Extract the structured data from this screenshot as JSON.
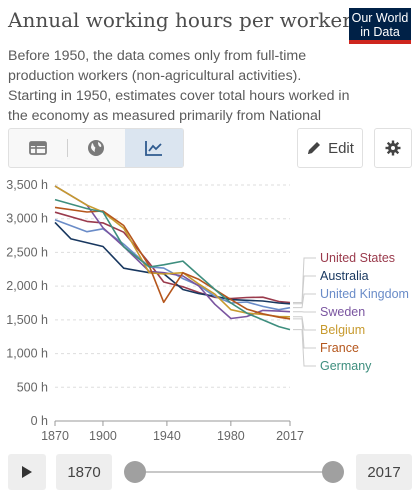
{
  "header": {
    "title": "Annual working hours per worker",
    "logo_line1": "Our World",
    "logo_line2": "in Data",
    "subtitle": "Before 1950, the data comes only from full-time production workers (non-agricultural activities). Starting in 1950, estimates cover total hours worked in the economy as measured primarily from National Accounts data."
  },
  "toolbar": {
    "tabs": [
      {
        "name": "table",
        "icon": "table-icon"
      },
      {
        "name": "map",
        "icon": "globe-icon"
      },
      {
        "name": "chart",
        "icon": "line-chart-icon",
        "active": true
      }
    ],
    "edit_label": "Edit",
    "settings_icon": "gear-icon"
  },
  "timeline": {
    "start_year": "1870",
    "end_year": "2017",
    "play_icon": "play-icon"
  },
  "chart_data": {
    "type": "line",
    "title": "",
    "xlabel": "",
    "ylabel": "",
    "xlim": [
      1870,
      2017
    ],
    "ylim": [
      0,
      3500
    ],
    "x_ticks": [
      "1870",
      "1900",
      "1940",
      "1980",
      "2017"
    ],
    "x_tick_values": [
      1870,
      1900,
      1940,
      1980,
      2017
    ],
    "y_ticks": [
      "0 h",
      "500 h",
      "1,000 h",
      "1,500 h",
      "2,000 h",
      "2,500 h",
      "3,000 h",
      "3,500 h"
    ],
    "y_tick_values": [
      0,
      500,
      1000,
      1500,
      2000,
      2500,
      3000,
      3500
    ],
    "grid": "horizontal-dashed",
    "legend": "right",
    "series": [
      {
        "name": "United States",
        "color": "#9a3a4c",
        "points": [
          [
            1870,
            3096
          ],
          [
            1890,
            2960
          ],
          [
            1900,
            2938
          ],
          [
            1913,
            2800
          ],
          [
            1929,
            2342
          ],
          [
            1938,
            2062
          ],
          [
            1950,
            1990
          ],
          [
            1960,
            1905
          ],
          [
            1970,
            1835
          ],
          [
            1980,
            1815
          ],
          [
            1990,
            1831
          ],
          [
            2000,
            1836
          ],
          [
            2010,
            1772
          ],
          [
            2017,
            1757
          ]
        ]
      },
      {
        "name": "Australia",
        "color": "#18375f",
        "points": [
          [
            1870,
            2945
          ],
          [
            1880,
            2700
          ],
          [
            1900,
            2588
          ],
          [
            1913,
            2266
          ],
          [
            1929,
            2200
          ],
          [
            1938,
            2185
          ],
          [
            1950,
            1950
          ],
          [
            1960,
            1890
          ],
          [
            1970,
            1850
          ],
          [
            1980,
            1800
          ],
          [
            1990,
            1790
          ],
          [
            2000,
            1780
          ],
          [
            2010,
            1750
          ],
          [
            2017,
            1738
          ]
        ]
      },
      {
        "name": "United Kingdom",
        "color": "#6a8cc8",
        "points": [
          [
            1870,
            2984
          ],
          [
            1890,
            2807
          ],
          [
            1900,
            2850
          ],
          [
            1913,
            2624
          ],
          [
            1929,
            2286
          ],
          [
            1938,
            2267
          ],
          [
            1950,
            2112
          ],
          [
            1960,
            2010
          ],
          [
            1970,
            1850
          ],
          [
            1980,
            1750
          ],
          [
            1990,
            1765
          ],
          [
            2000,
            1700
          ],
          [
            2010,
            1650
          ],
          [
            2017,
            1681
          ]
        ]
      },
      {
        "name": "Sweden",
        "color": "#7a55a0",
        "points": [
          [
            1870,
            3483
          ],
          [
            1890,
            3200
          ],
          [
            1900,
            2865
          ],
          [
            1913,
            2587
          ],
          [
            1929,
            2219
          ],
          [
            1938,
            2200
          ],
          [
            1950,
            2150
          ],
          [
            1960,
            2000
          ],
          [
            1970,
            1730
          ],
          [
            1980,
            1520
          ],
          [
            1990,
            1550
          ],
          [
            2000,
            1640
          ],
          [
            2010,
            1630
          ],
          [
            2017,
            1621
          ]
        ]
      },
      {
        "name": "Belgium",
        "color": "#c79a2e",
        "points": [
          [
            1870,
            3483
          ],
          [
            1890,
            3200
          ],
          [
            1900,
            3100
          ],
          [
            1913,
            2860
          ],
          [
            1929,
            2200
          ],
          [
            1938,
            2180
          ],
          [
            1950,
            2200
          ],
          [
            1960,
            2030
          ],
          [
            1970,
            1880
          ],
          [
            1980,
            1650
          ],
          [
            1990,
            1600
          ],
          [
            2000,
            1580
          ],
          [
            2010,
            1550
          ],
          [
            2017,
            1546
          ]
        ]
      },
      {
        "name": "France",
        "color": "#b5561c",
        "points": [
          [
            1870,
            3168
          ],
          [
            1890,
            3100
          ],
          [
            1900,
            3115
          ],
          [
            1913,
            2900
          ],
          [
            1929,
            2297
          ],
          [
            1938,
            1760
          ],
          [
            1950,
            2200
          ],
          [
            1960,
            2100
          ],
          [
            1970,
            1950
          ],
          [
            1980,
            1800
          ],
          [
            1990,
            1660
          ],
          [
            2000,
            1590
          ],
          [
            2010,
            1540
          ],
          [
            2017,
            1514
          ]
        ]
      },
      {
        "name": "Germany",
        "color": "#3e8e7e",
        "points": [
          [
            1870,
            3284
          ],
          [
            1890,
            3150
          ],
          [
            1900,
            3100
          ],
          [
            1913,
            2584
          ],
          [
            1929,
            2284
          ],
          [
            1938,
            2316
          ],
          [
            1950,
            2372
          ],
          [
            1960,
            2160
          ],
          [
            1970,
            1950
          ],
          [
            1980,
            1750
          ],
          [
            1990,
            1600
          ],
          [
            2000,
            1500
          ],
          [
            2010,
            1400
          ],
          [
            2017,
            1356
          ]
        ]
      }
    ]
  }
}
